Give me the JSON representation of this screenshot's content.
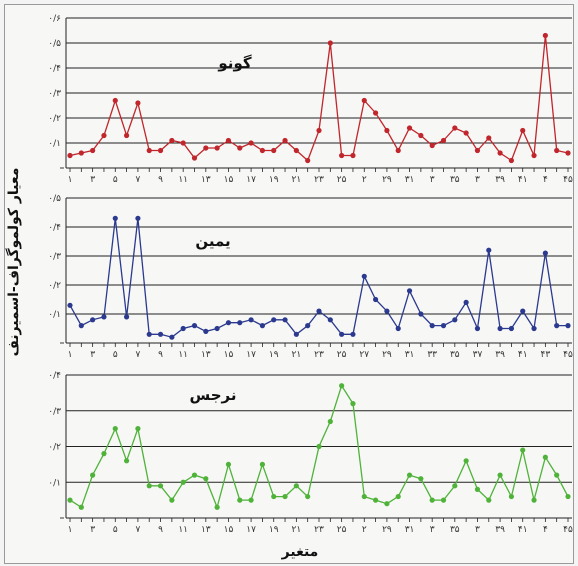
{
  "chart_data": [
    {
      "type": "line",
      "title": "گونو",
      "color": "#c0262c",
      "y_ticks": [
        "۰/۶",
        "۰/۵",
        "۰/۴",
        "۰/۳",
        "۰/۲",
        "۰/۱"
      ],
      "ylim": [
        0,
        0.6
      ],
      "x_tick_labels": [
        "۱",
        "۳",
        "۵",
        "۷",
        "۹",
        "۱۱",
        "۱۳",
        "۱۵",
        "۱۷",
        "۱۹",
        "۲۱",
        "۲۳",
        "۲۵",
        "۲",
        "۲۹",
        "۳۱",
        "۳",
        "۳۵",
        "۳",
        "۳۹",
        "۴۱",
        "۴",
        "۴۵"
      ],
      "values": [
        0.05,
        0.06,
        0.07,
        0.13,
        0.27,
        0.13,
        0.26,
        0.07,
        0.07,
        0.11,
        0.1,
        0.04,
        0.08,
        0.08,
        0.11,
        0.08,
        0.1,
        0.07,
        0.07,
        0.11,
        0.07,
        0.03,
        0.15,
        0.5,
        0.05,
        0.05,
        0.27,
        0.22,
        0.15,
        0.07,
        0.16,
        0.13,
        0.09,
        0.11,
        0.16,
        0.14,
        0.07,
        0.12,
        0.06,
        0.03,
        0.15,
        0.05,
        0.53,
        0.07,
        0.06
      ]
    },
    {
      "type": "line",
      "title": "یمین",
      "color": "#2b3a8f",
      "y_ticks": [
        "۰/۵",
        "۰/۴",
        "۰/۳",
        "۰/۲",
        "۰/۱"
      ],
      "ylim": [
        0,
        0.5
      ],
      "x_tick_labels": [
        "۱",
        "۳",
        "۵",
        "۷",
        "۹",
        "۱۱",
        "۱۳",
        "۱۵",
        "۱۷",
        "۱۹",
        "۲۱",
        "۲۳",
        "۲۵",
        "۲۷",
        "۲۹",
        "۳۱",
        "۳۳",
        "۳۵",
        "۳۷",
        "۳۹",
        "۴۱",
        "۴۳",
        "۴۵"
      ],
      "values": [
        0.13,
        0.06,
        0.08,
        0.09,
        0.43,
        0.09,
        0.43,
        0.03,
        0.03,
        0.02,
        0.05,
        0.06,
        0.04,
        0.05,
        0.07,
        0.07,
        0.08,
        0.06,
        0.08,
        0.08,
        0.03,
        0.06,
        0.11,
        0.08,
        0.03,
        0.03,
        0.23,
        0.15,
        0.11,
        0.05,
        0.18,
        0.1,
        0.06,
        0.06,
        0.08,
        0.14,
        0.05,
        0.32,
        0.05,
        0.05,
        0.11,
        0.05,
        0.31,
        0.06,
        0.06
      ]
    },
    {
      "type": "line",
      "title": "نرجس",
      "color": "#4fb33a",
      "y_ticks": [
        "۰/۴",
        "۰/۳",
        "۰/۲",
        "۰/۱"
      ],
      "ylim": [
        0,
        0.4
      ],
      "x_tick_labels": [
        "۱",
        "۳",
        "۵",
        "۷",
        "۹",
        "۱۱",
        "۱۳",
        "۱۵",
        "۱۷",
        "۱۹",
        "۲۱",
        "۲۳",
        "۲۵",
        "۲",
        "۲۹",
        "۳۱",
        "۳",
        "۳۵",
        "۳",
        "۳۹",
        "۴۱",
        "۴",
        "۴۵"
      ],
      "xlabel": "متغیر",
      "values": [
        0.05,
        0.03,
        0.12,
        0.18,
        0.25,
        0.16,
        0.25,
        0.09,
        0.09,
        0.05,
        0.1,
        0.12,
        0.11,
        0.03,
        0.15,
        0.05,
        0.05,
        0.15,
        0.06,
        0.06,
        0.09,
        0.06,
        0.2,
        0.27,
        0.37,
        0.32,
        0.06,
        0.05,
        0.04,
        0.06,
        0.12,
        0.11,
        0.05,
        0.05,
        0.09,
        0.16,
        0.08,
        0.05,
        0.12,
        0.06,
        0.19,
        0.05,
        0.17,
        0.12,
        0.06
      ]
    }
  ],
  "ylabel": "معیار کولموگراف-اسمیرنف"
}
